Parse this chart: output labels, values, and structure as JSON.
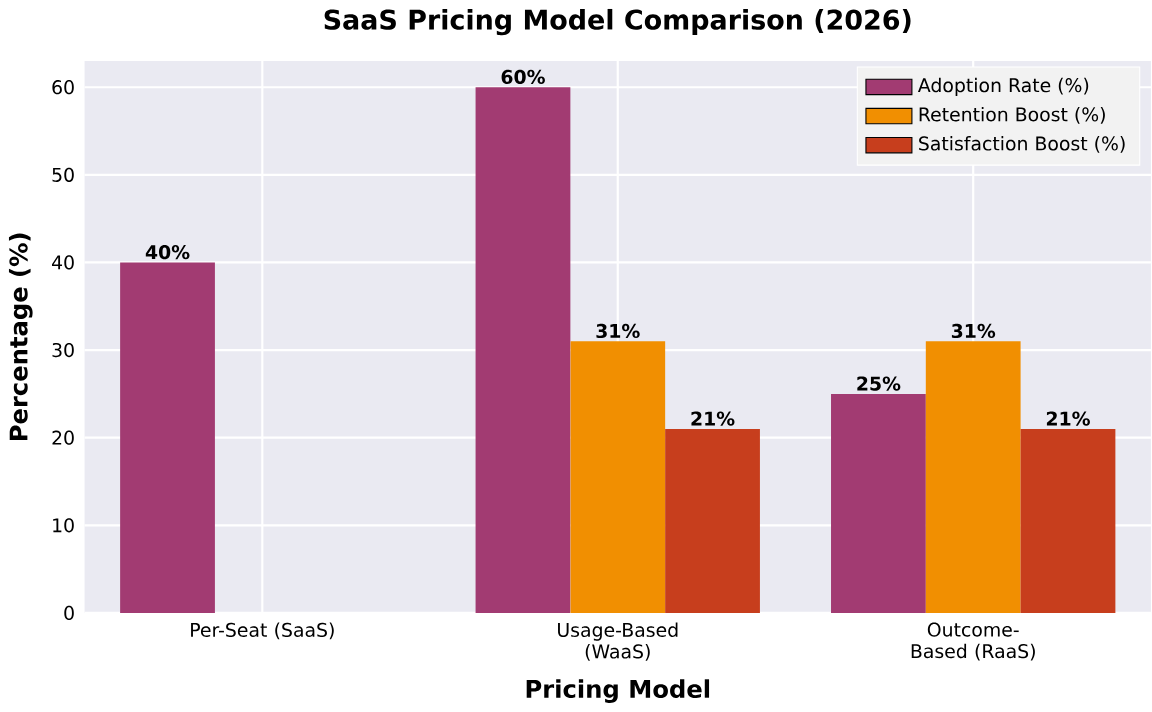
{
  "chart_data": {
    "type": "bar",
    "title": "SaaS Pricing Model Comparison (2026)",
    "xlabel": "Pricing Model",
    "ylabel": "Percentage (%)",
    "categories": [
      "Per-Seat (SaaS)",
      "Usage-Based (WaaS)",
      "Outcome-Based (RaaS)"
    ],
    "series": [
      {
        "name": "Adoption Rate (%)",
        "color": "#a23b72",
        "values": [
          40,
          60,
          25
        ],
        "value_labels": [
          "40%",
          "60%",
          "25%"
        ]
      },
      {
        "name": "Retention Boost (%)",
        "color": "#f18f01",
        "values": [
          null,
          31,
          31
        ],
        "value_labels": [
          null,
          "31%",
          "31%"
        ]
      },
      {
        "name": "Satisfaction Boost (%)",
        "color": "#c73e1d",
        "values": [
          null,
          21,
          21
        ],
        "value_labels": [
          null,
          "21%",
          "21%"
        ]
      }
    ],
    "ylim": [
      0,
      63
    ],
    "yticks": [
      0,
      10,
      20,
      30,
      40,
      50,
      60
    ],
    "grid": true,
    "legend": "top right"
  }
}
